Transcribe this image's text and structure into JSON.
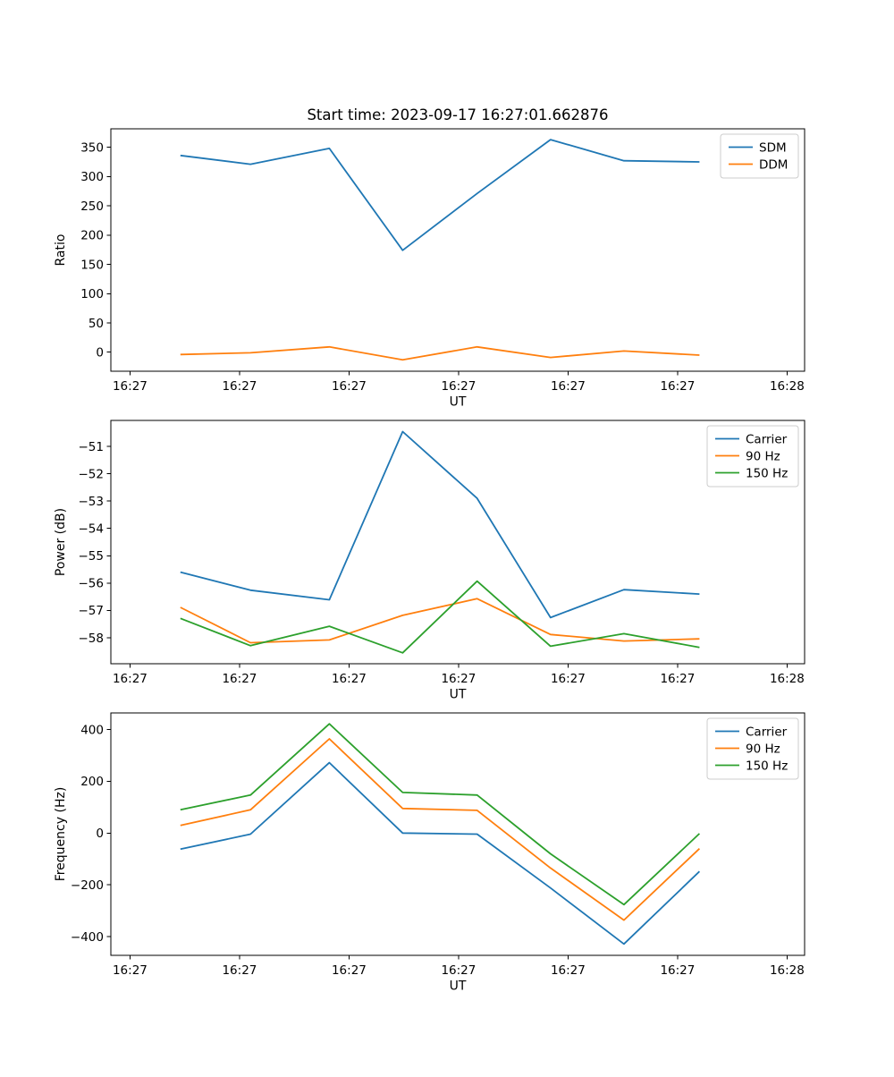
{
  "figure": {
    "title": "Start time: 2023-09-17 16:27:01.662876",
    "background_color": "#ffffff",
    "text_color": "#000000",
    "axes_edge_color": "#000000",
    "legend_edge_color": "#cccccc"
  },
  "chart_data": [
    {
      "type": "line",
      "title": "Start time: 2023-09-17 16:27:01.662876",
      "xlabel": "UT",
      "ylabel": "Ratio",
      "grid": false,
      "legend_position": "upper right",
      "xlim": [
        -1.75,
        61.6
      ],
      "ylim": [
        -32.5,
        381.5
      ],
      "x": [
        4.6,
        11.0,
        18.2,
        24.9,
        31.7,
        38.4,
        45.1,
        52.0
      ],
      "series": [
        {
          "name": "SDM",
          "color": "#1f77b4",
          "values": [
            336,
            321,
            348,
            174,
            271,
            363,
            327,
            325
          ]
        },
        {
          "name": "DDM",
          "color": "#ff7f0e",
          "values": [
            -4,
            -1,
            9,
            -13,
            9,
            -9,
            2,
            -5
          ]
        }
      ],
      "yticks": [
        {
          "v": 0,
          "label": "0"
        },
        {
          "v": 50,
          "label": "50"
        },
        {
          "v": 100,
          "label": "100"
        },
        {
          "v": 150,
          "label": "150"
        },
        {
          "v": 200,
          "label": "200"
        },
        {
          "v": 250,
          "label": "250"
        },
        {
          "v": 300,
          "label": "300"
        },
        {
          "v": 350,
          "label": "350"
        }
      ],
      "xticks": [
        {
          "v": 0,
          "label": "16:27"
        },
        {
          "v": 10,
          "label": "16:27"
        },
        {
          "v": 20,
          "label": "16:27"
        },
        {
          "v": 30,
          "label": "16:27"
        },
        {
          "v": 40,
          "label": "16:27"
        },
        {
          "v": 50,
          "label": "16:27"
        },
        {
          "v": 60,
          "label": "16:28"
        }
      ]
    },
    {
      "type": "line",
      "title": "",
      "xlabel": "UT",
      "ylabel": "Power (dB)",
      "grid": false,
      "legend_position": "upper right",
      "xlim": [
        -1.75,
        61.6
      ],
      "ylim": [
        -58.95,
        -50.05
      ],
      "x": [
        4.6,
        11.0,
        18.2,
        24.9,
        31.7,
        38.4,
        45.1,
        52.0
      ],
      "series": [
        {
          "name": "Carrier",
          "color": "#1f77b4",
          "values": [
            -55.6,
            -56.26,
            -56.61,
            -50.46,
            -52.9,
            -57.26,
            -56.24,
            -56.4
          ]
        },
        {
          "name": "90 Hz",
          "color": "#ff7f0e",
          "values": [
            -56.89,
            -58.18,
            -58.08,
            -57.18,
            -56.57,
            -57.88,
            -58.12,
            -58.04
          ]
        },
        {
          "name": "150 Hz",
          "color": "#2ca02c",
          "values": [
            -57.29,
            -58.29,
            -57.58,
            -58.55,
            -55.93,
            -58.31,
            -57.85,
            -58.35
          ]
        }
      ],
      "yticks": [
        {
          "v": -51,
          "label": "−51"
        },
        {
          "v": -52,
          "label": "−52"
        },
        {
          "v": -53,
          "label": "−53"
        },
        {
          "v": -54,
          "label": "−54"
        },
        {
          "v": -55,
          "label": "−55"
        },
        {
          "v": -56,
          "label": "−56"
        },
        {
          "v": -57,
          "label": "−57"
        },
        {
          "v": -58,
          "label": "−58"
        }
      ],
      "xticks": [
        {
          "v": 0,
          "label": "16:27"
        },
        {
          "v": 10,
          "label": "16:27"
        },
        {
          "v": 20,
          "label": "16:27"
        },
        {
          "v": 30,
          "label": "16:27"
        },
        {
          "v": 40,
          "label": "16:27"
        },
        {
          "v": 50,
          "label": "16:27"
        },
        {
          "v": 60,
          "label": "16:28"
        }
      ]
    },
    {
      "type": "line",
      "title": "",
      "xlabel": "UT",
      "ylabel": "Frequency (Hz)",
      "grid": false,
      "legend_position": "upper right",
      "xlim": [
        -1.75,
        61.6
      ],
      "ylim": [
        -472,
        464
      ],
      "x": [
        4.6,
        11.0,
        18.2,
        24.9,
        31.7,
        38.4,
        45.1,
        52.0
      ],
      "series": [
        {
          "name": "Carrier",
          "color": "#1f77b4",
          "values": [
            -62,
            -4,
            272,
            0,
            -4,
            -212,
            -428,
            -148
          ]
        },
        {
          "name": "90 Hz",
          "color": "#ff7f0e",
          "values": [
            30,
            90,
            364,
            95,
            88,
            -135,
            -336,
            -60
          ]
        },
        {
          "name": "150 Hz",
          "color": "#2ca02c",
          "values": [
            90,
            147,
            422,
            157,
            147,
            -80,
            -276,
            -2
          ]
        }
      ],
      "yticks": [
        {
          "v": -400,
          "label": "−400"
        },
        {
          "v": -200,
          "label": "−200"
        },
        {
          "v": 0,
          "label": "0"
        },
        {
          "v": 200,
          "label": "200"
        },
        {
          "v": 400,
          "label": "400"
        }
      ],
      "xticks": [
        {
          "v": 0,
          "label": "16:27"
        },
        {
          "v": 10,
          "label": "16:27"
        },
        {
          "v": 20,
          "label": "16:27"
        },
        {
          "v": 30,
          "label": "16:27"
        },
        {
          "v": 40,
          "label": "16:27"
        },
        {
          "v": 50,
          "label": "16:27"
        },
        {
          "v": 60,
          "label": "16:28"
        }
      ]
    }
  ]
}
